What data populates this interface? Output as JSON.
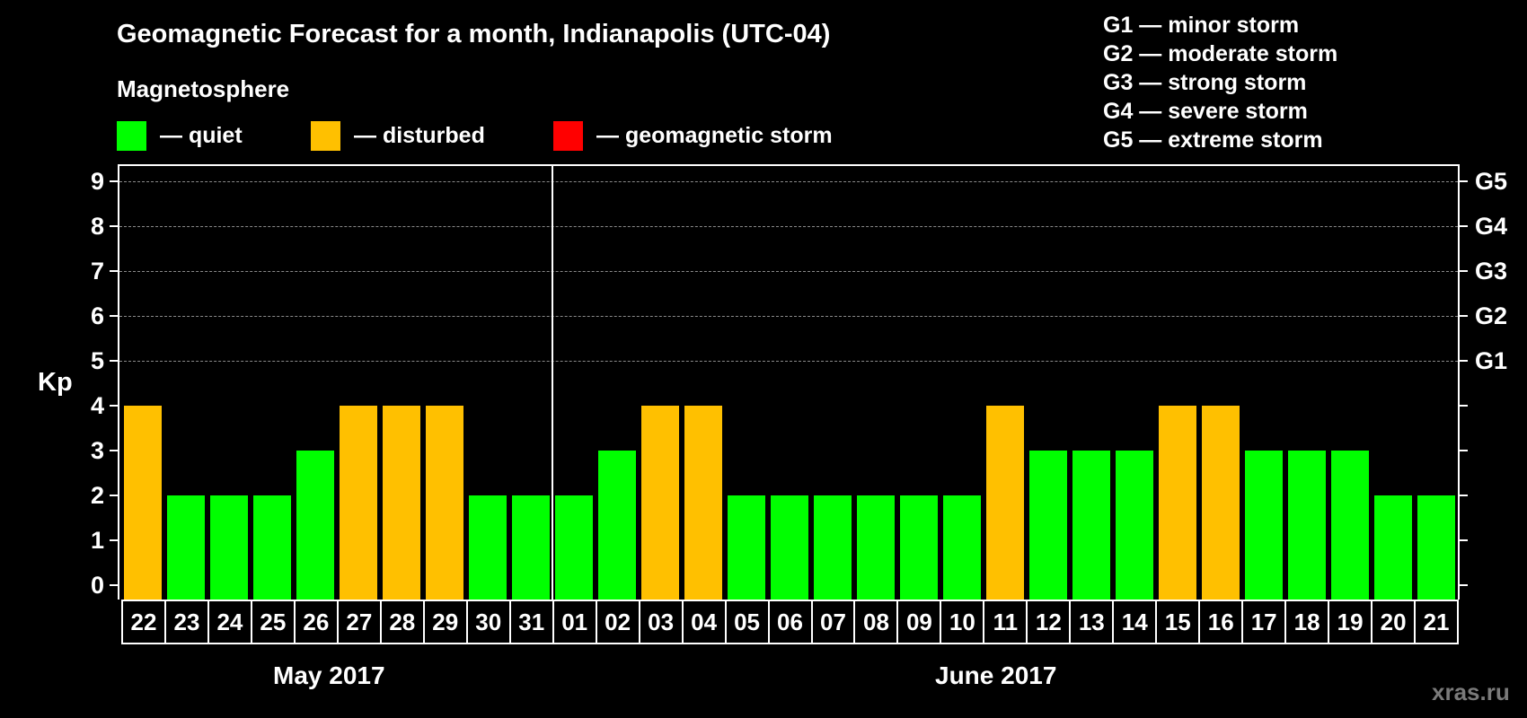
{
  "header": {
    "title": "Geomagnetic Forecast for a month, Indianapolis (UTC-04)",
    "subtitle": "Magnetosphere"
  },
  "legend": [
    {
      "label": "— quiet",
      "color": "#00ff00"
    },
    {
      "label": "— disturbed",
      "color": "#ffc000"
    },
    {
      "label": "— geomagnetic storm",
      "color": "#ff0000"
    }
  ],
  "storm_scale": [
    "G1 — minor storm",
    "G2 — moderate storm",
    "G3 — strong storm",
    "G4 — severe storm",
    "G5 — extreme storm"
  ],
  "axis": {
    "ylabel": "Kp",
    "yticks": [
      "0",
      "1",
      "2",
      "3",
      "4",
      "5",
      "6",
      "7",
      "8",
      "9"
    ],
    "right_labels": [
      {
        "kp": 5,
        "label": "G1"
      },
      {
        "kp": 6,
        "label": "G2"
      },
      {
        "kp": 7,
        "label": "G3"
      },
      {
        "kp": 8,
        "label": "G4"
      },
      {
        "kp": 9,
        "label": "G5"
      }
    ]
  },
  "months": [
    "May 2017",
    "June 2017"
  ],
  "watermark": "xras.ru",
  "colors": {
    "quiet": "#00ff00",
    "disturbed": "#ffc000",
    "storm": "#ff0000",
    "background": "#000000",
    "grid": "#8a8a8a"
  },
  "chart_data": {
    "type": "bar",
    "title": "Geomagnetic Forecast for a month, Indianapolis (UTC-04)",
    "subtitle": "Magnetosphere",
    "xlabel": "May 2017 / June 2017",
    "ylabel": "Kp",
    "ylim": [
      0,
      9
    ],
    "grid": true,
    "legend_position": "top",
    "categories": [
      "22",
      "23",
      "24",
      "25",
      "26",
      "27",
      "28",
      "29",
      "30",
      "31",
      "01",
      "02",
      "03",
      "04",
      "05",
      "06",
      "07",
      "08",
      "09",
      "10",
      "11",
      "12",
      "13",
      "14",
      "15",
      "16",
      "17",
      "18",
      "19",
      "20",
      "21"
    ],
    "values": [
      4,
      2,
      2,
      2,
      3,
      4,
      4,
      4,
      2,
      2,
      2,
      3,
      4,
      4,
      2,
      2,
      2,
      2,
      2,
      2,
      4,
      3,
      3,
      3,
      4,
      4,
      3,
      3,
      3,
      2,
      2
    ],
    "status": [
      "disturbed",
      "quiet",
      "quiet",
      "quiet",
      "quiet",
      "disturbed",
      "disturbed",
      "disturbed",
      "quiet",
      "quiet",
      "quiet",
      "quiet",
      "disturbed",
      "disturbed",
      "quiet",
      "quiet",
      "quiet",
      "quiet",
      "quiet",
      "quiet",
      "disturbed",
      "quiet",
      "quiet",
      "quiet",
      "disturbed",
      "disturbed",
      "quiet",
      "quiet",
      "quiet",
      "quiet",
      "quiet"
    ],
    "month_groups": [
      {
        "label": "May 2017",
        "days": [
          "22",
          "23",
          "24",
          "25",
          "26",
          "27",
          "28",
          "29",
          "30",
          "31"
        ]
      },
      {
        "label": "June 2017",
        "days": [
          "01",
          "02",
          "03",
          "04",
          "05",
          "06",
          "07",
          "08",
          "09",
          "10",
          "11",
          "12",
          "13",
          "14",
          "15",
          "16",
          "17",
          "18",
          "19",
          "20",
          "21"
        ]
      }
    ],
    "right_axis": {
      "5": "G1",
      "6": "G2",
      "7": "G3",
      "8": "G4",
      "9": "G5"
    }
  }
}
